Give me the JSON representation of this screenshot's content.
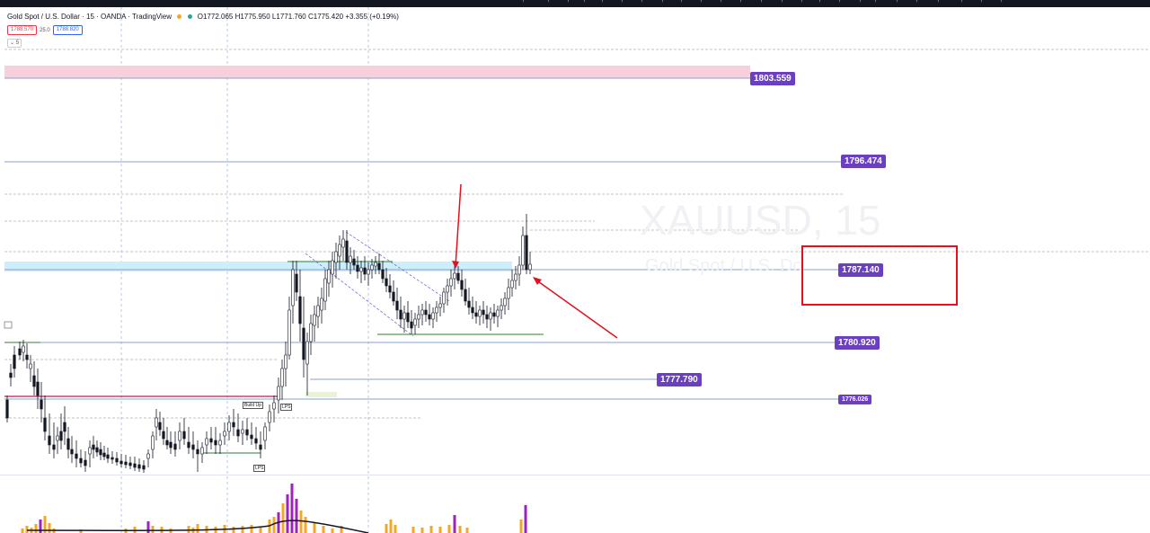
{
  "header": {
    "symbol_title": "Gold Spot / U.S. Dollar · 15 · OANDA · TradingView",
    "ohlc": "O1772.065 H1775.950 L1771.760 C1775.420 +3.355 (+0.19%)"
  },
  "quote": {
    "sell": "1788.570",
    "spread": "25.0",
    "buy": "1788.820"
  },
  "collapse_label": "5",
  "watermark": {
    "symbol": "XAUUSD, 15",
    "description": "Gold Spot / U.S. Do"
  },
  "price_labels": [
    "1803.559",
    "1796.474",
    "1787.140",
    "1780.920",
    "1777.790",
    "1776.026"
  ],
  "annotations": {
    "build_up": "Build Up",
    "lps_1": "LPS",
    "lps_2": "LPS"
  },
  "colors": {
    "label_purple": "#6a3fc0",
    "arrow_red": "#e0121f",
    "zone_pink": "#f8d0dc",
    "zone_cyan": "#cdeefb",
    "support_green": "#2e7d32",
    "volume_orange": "#f5a623",
    "volume_purple": "#a020c0"
  },
  "icons": [
    "toolbar-icon"
  ]
}
